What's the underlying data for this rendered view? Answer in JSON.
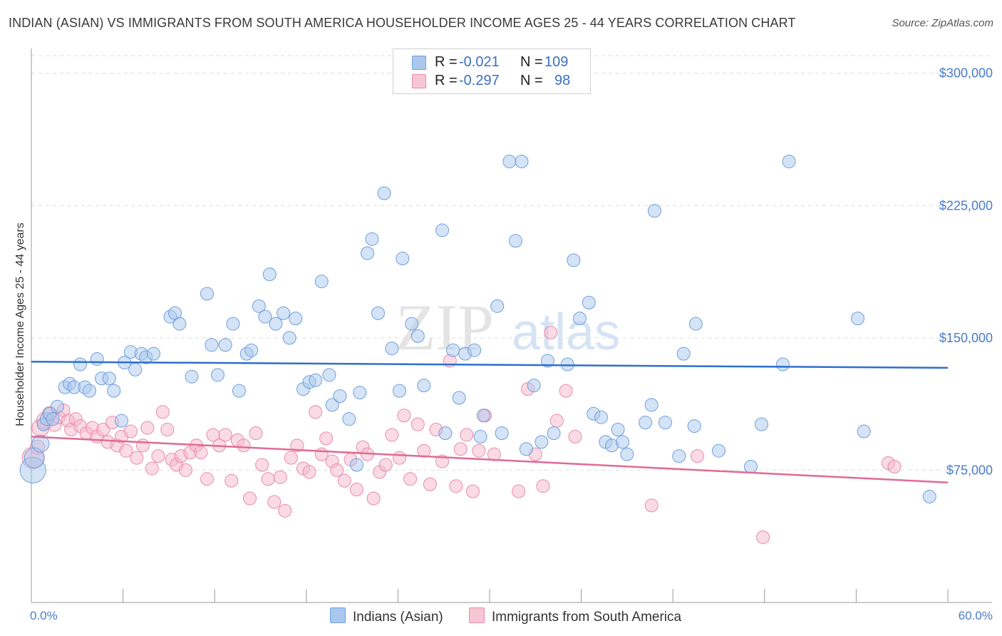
{
  "title": "INDIAN (ASIAN) VS IMMIGRANTS FROM SOUTH AMERICA HOUSEHOLDER INCOME AGES 25 - 44 YEARS CORRELATION CHART",
  "source": "Source: ZipAtlas.com",
  "watermark": {
    "zip": "ZIP",
    "atlas": "atlas"
  },
  "legend": {
    "rows": [
      {
        "r_label": "R =",
        "r_value": "-0.021",
        "n_label": "N =",
        "n_value": "109"
      },
      {
        "r_label": "R =",
        "r_value": "-0.297",
        "n_label": "N =",
        "n_value": "98"
      }
    ]
  },
  "bottom_legend": [
    "Indians (Asian)",
    "Immigrants from South America"
  ],
  "colors": {
    "blue_fill": "#aac8ee",
    "blue_stroke": "#6f9fdc",
    "blue_line": "#2e6fcf",
    "pink_fill": "#f6b8cb",
    "pink_stroke": "#e98aa9",
    "pink_line": "#e06a97",
    "tick_text": "#4a7cc7",
    "grid": "#dddddd"
  },
  "chart_data": {
    "type": "scatter",
    "title": "INDIAN (ASIAN) VS IMMIGRANTS FROM SOUTH AMERICA HOUSEHOLDER INCOME AGES 25 - 44 YEARS CORRELATION CHART",
    "xlabel": "",
    "ylabel": "Householder Income Ages 25 - 44 years",
    "xlim": [
      0,
      60
    ],
    "ylim": [
      0,
      310000
    ],
    "x_tick_labels": [
      "0.0%",
      "60.0%"
    ],
    "y_ticks": [
      75000,
      150000,
      225000,
      300000
    ],
    "y_tick_labels": [
      "$75,000",
      "$150,000",
      "$225,000",
      "$300,000"
    ],
    "grid": true,
    "legend_position": "top-center",
    "series": [
      {
        "name": "Indians (Asian)",
        "r": -0.021,
        "n": 109,
        "trend": [
          [
            0,
            136500
          ],
          [
            60,
            133000
          ]
        ],
        "points": [
          [
            0.1,
            75000,
            18
          ],
          [
            0.2,
            82000,
            14
          ],
          [
            0.8,
            101000,
            9
          ],
          [
            1.0,
            104000,
            9
          ],
          [
            1.2,
            107000,
            9
          ],
          [
            1.4,
            104000,
            9
          ],
          [
            1.7,
            111000,
            9
          ],
          [
            0.6,
            90000,
            12
          ],
          [
            2.2,
            122000,
            9
          ],
          [
            2.5,
            124000,
            9
          ],
          [
            2.8,
            122000,
            9
          ],
          [
            3.2,
            135000,
            9
          ],
          [
            3.5,
            122000,
            9
          ],
          [
            3.8,
            120000,
            9
          ],
          [
            4.3,
            138000,
            9
          ],
          [
            4.6,
            127000,
            9
          ],
          [
            5.1,
            127000,
            9
          ],
          [
            5.4,
            120000,
            9
          ],
          [
            5.9,
            103000,
            9
          ],
          [
            6.1,
            136000,
            9
          ],
          [
            6.5,
            142000,
            9
          ],
          [
            6.8,
            132000,
            9
          ],
          [
            7.2,
            141000,
            9
          ],
          [
            7.5,
            139000,
            9
          ],
          [
            8.0,
            141000,
            9
          ],
          [
            9.1,
            162000,
            9
          ],
          [
            9.4,
            164000,
            9
          ],
          [
            9.7,
            158000,
            9
          ],
          [
            10.5,
            128000,
            9
          ],
          [
            11.5,
            175000,
            9
          ],
          [
            11.8,
            146000,
            9
          ],
          [
            12.2,
            129000,
            9
          ],
          [
            12.7,
            146000,
            9
          ],
          [
            13.2,
            158000,
            9
          ],
          [
            13.6,
            120000,
            9
          ],
          [
            14.1,
            141000,
            9
          ],
          [
            14.4,
            143000,
            9
          ],
          [
            14.9,
            168000,
            9
          ],
          [
            15.3,
            162000,
            9
          ],
          [
            15.6,
            186000,
            9
          ],
          [
            16.0,
            158000,
            9
          ],
          [
            16.5,
            164000,
            9
          ],
          [
            16.9,
            150000,
            9
          ],
          [
            17.3,
            161000,
            9
          ],
          [
            17.8,
            121000,
            9
          ],
          [
            18.2,
            125000,
            9
          ],
          [
            18.6,
            126000,
            9
          ],
          [
            19.0,
            182000,
            9
          ],
          [
            19.5,
            129000,
            9
          ],
          [
            19.7,
            112000,
            9
          ],
          [
            20.2,
            117000,
            9
          ],
          [
            20.8,
            104000,
            9
          ],
          [
            21.3,
            78000,
            9
          ],
          [
            21.5,
            119000,
            9
          ],
          [
            22.0,
            198000,
            9
          ],
          [
            22.3,
            206000,
            9
          ],
          [
            22.7,
            164000,
            9
          ],
          [
            23.1,
            232000,
            9
          ],
          [
            23.6,
            144000,
            9
          ],
          [
            24.1,
            120000,
            9
          ],
          [
            24.3,
            195000,
            9
          ],
          [
            24.9,
            158000,
            9
          ],
          [
            25.3,
            151000,
            9
          ],
          [
            25.7,
            123000,
            9
          ],
          [
            26.9,
            211000,
            9
          ],
          [
            27.1,
            96000,
            9
          ],
          [
            27.6,
            143000,
            9
          ],
          [
            28.0,
            116000,
            9
          ],
          [
            28.4,
            141000,
            9
          ],
          [
            29.0,
            143000,
            9
          ],
          [
            29.4,
            94000,
            9
          ],
          [
            29.6,
            106000,
            9
          ],
          [
            30.5,
            168000,
            9
          ],
          [
            30.8,
            96000,
            9
          ],
          [
            31.3,
            250000,
            9
          ],
          [
            31.7,
            205000,
            9
          ],
          [
            32.1,
            250000,
            9
          ],
          [
            32.4,
            87000,
            9
          ],
          [
            32.9,
            123000,
            9
          ],
          [
            33.4,
            91000,
            9
          ],
          [
            33.8,
            137000,
            9
          ],
          [
            34.2,
            96000,
            9
          ],
          [
            35.1,
            135000,
            9
          ],
          [
            35.5,
            194000,
            9
          ],
          [
            35.9,
            161000,
            9
          ],
          [
            36.5,
            170000,
            9
          ],
          [
            36.8,
            107000,
            9
          ],
          [
            37.3,
            105000,
            9
          ],
          [
            37.6,
            91000,
            9
          ],
          [
            38.0,
            89000,
            9
          ],
          [
            38.4,
            98000,
            9
          ],
          [
            38.7,
            91000,
            9
          ],
          [
            39.0,
            84000,
            9
          ],
          [
            40.2,
            102000,
            9
          ],
          [
            40.6,
            112000,
            9
          ],
          [
            40.8,
            222000,
            9
          ],
          [
            41.5,
            102000,
            9
          ],
          [
            42.4,
            83000,
            9
          ],
          [
            42.7,
            141000,
            9
          ],
          [
            43.4,
            100000,
            9
          ],
          [
            43.5,
            158000,
            9
          ],
          [
            45.0,
            86000,
            9
          ],
          [
            47.1,
            77000,
            9
          ],
          [
            47.8,
            101000,
            9
          ],
          [
            49.2,
            135000,
            9
          ],
          [
            49.6,
            250000,
            9
          ],
          [
            54.1,
            161000,
            9
          ],
          [
            54.5,
            97000,
            9
          ],
          [
            58.8,
            60000,
            9
          ]
        ]
      },
      {
        "name": "Immigrants from South America",
        "r": -0.297,
        "n": 98,
        "trend": [
          [
            0,
            94000
          ],
          [
            60,
            68000
          ]
        ],
        "points": [
          [
            0.1,
            82000,
            15
          ],
          [
            0.4,
            88000,
            10
          ],
          [
            0.6,
            99000,
            12
          ],
          [
            0.9,
            103000,
            12
          ],
          [
            1.2,
            107000,
            10
          ],
          [
            1.5,
            101000,
            10
          ],
          [
            1.8,
            105000,
            9
          ],
          [
            2.1,
            109000,
            9
          ],
          [
            2.4,
            103000,
            9
          ],
          [
            2.6,
            98000,
            9
          ],
          [
            2.9,
            104000,
            9
          ],
          [
            3.2,
            100000,
            9
          ],
          [
            3.6,
            96000,
            9
          ],
          [
            4.0,
            99000,
            9
          ],
          [
            4.3,
            94000,
            9
          ],
          [
            4.7,
            98000,
            9
          ],
          [
            5.0,
            91000,
            9
          ],
          [
            5.3,
            102000,
            9
          ],
          [
            5.6,
            89000,
            9
          ],
          [
            5.9,
            94000,
            9
          ],
          [
            6.2,
            86000,
            9
          ],
          [
            6.5,
            97000,
            9
          ],
          [
            6.9,
            82000,
            9
          ],
          [
            7.3,
            89000,
            9
          ],
          [
            7.6,
            99000,
            9
          ],
          [
            7.9,
            76000,
            9
          ],
          [
            8.3,
            83000,
            9
          ],
          [
            8.6,
            108000,
            9
          ],
          [
            8.9,
            98000,
            9
          ],
          [
            9.2,
            81000,
            9
          ],
          [
            9.5,
            78000,
            9
          ],
          [
            9.8,
            83000,
            9
          ],
          [
            10.1,
            75000,
            9
          ],
          [
            10.4,
            85000,
            9
          ],
          [
            10.8,
            89000,
            9
          ],
          [
            11.1,
            85000,
            9
          ],
          [
            11.5,
            70000,
            9
          ],
          [
            11.9,
            95000,
            9
          ],
          [
            12.3,
            89000,
            9
          ],
          [
            12.7,
            95000,
            9
          ],
          [
            13.1,
            69000,
            9
          ],
          [
            13.5,
            92000,
            9
          ],
          [
            13.9,
            89000,
            9
          ],
          [
            14.3,
            59000,
            9
          ],
          [
            14.7,
            96000,
            9
          ],
          [
            15.1,
            78000,
            9
          ],
          [
            15.5,
            70000,
            9
          ],
          [
            15.9,
            57000,
            9
          ],
          [
            16.3,
            71000,
            9
          ],
          [
            16.6,
            52000,
            9
          ],
          [
            17.0,
            82000,
            9
          ],
          [
            17.4,
            89000,
            9
          ],
          [
            17.8,
            76000,
            9
          ],
          [
            18.2,
            74000,
            9
          ],
          [
            18.6,
            108000,
            9
          ],
          [
            19.0,
            84000,
            9
          ],
          [
            19.3,
            93000,
            9
          ],
          [
            19.7,
            80000,
            9
          ],
          [
            20.0,
            75000,
            9
          ],
          [
            20.5,
            69000,
            9
          ],
          [
            20.9,
            81000,
            9
          ],
          [
            21.3,
            64000,
            9
          ],
          [
            21.7,
            88000,
            9
          ],
          [
            22.0,
            84000,
            9
          ],
          [
            22.4,
            59000,
            9
          ],
          [
            22.8,
            74000,
            9
          ],
          [
            23.2,
            78000,
            9
          ],
          [
            23.6,
            95000,
            9
          ],
          [
            24.1,
            82000,
            9
          ],
          [
            24.4,
            106000,
            9
          ],
          [
            24.8,
            70000,
            9
          ],
          [
            25.3,
            101000,
            9
          ],
          [
            25.7,
            86000,
            9
          ],
          [
            26.1,
            67000,
            9
          ],
          [
            26.5,
            98000,
            9
          ],
          [
            26.9,
            80000,
            9
          ],
          [
            27.4,
            137000,
            9
          ],
          [
            27.8,
            66000,
            9
          ],
          [
            28.1,
            87000,
            9
          ],
          [
            28.5,
            95000,
            9
          ],
          [
            28.9,
            63000,
            9
          ],
          [
            29.3,
            86000,
            9
          ],
          [
            29.7,
            106000,
            9
          ],
          [
            30.3,
            84000,
            9
          ],
          [
            31.9,
            63000,
            9
          ],
          [
            32.5,
            121000,
            9
          ],
          [
            33.0,
            84000,
            9
          ],
          [
            33.5,
            66000,
            9
          ],
          [
            34.0,
            153000,
            9
          ],
          [
            34.4,
            103000,
            9
          ],
          [
            35.0,
            120000,
            9
          ],
          [
            35.6,
            94000,
            9
          ],
          [
            40.6,
            55000,
            9
          ],
          [
            43.6,
            83000,
            9
          ],
          [
            47.9,
            37000,
            9
          ],
          [
            56.1,
            79000,
            9
          ],
          [
            56.5,
            77000,
            9
          ]
        ]
      }
    ]
  }
}
